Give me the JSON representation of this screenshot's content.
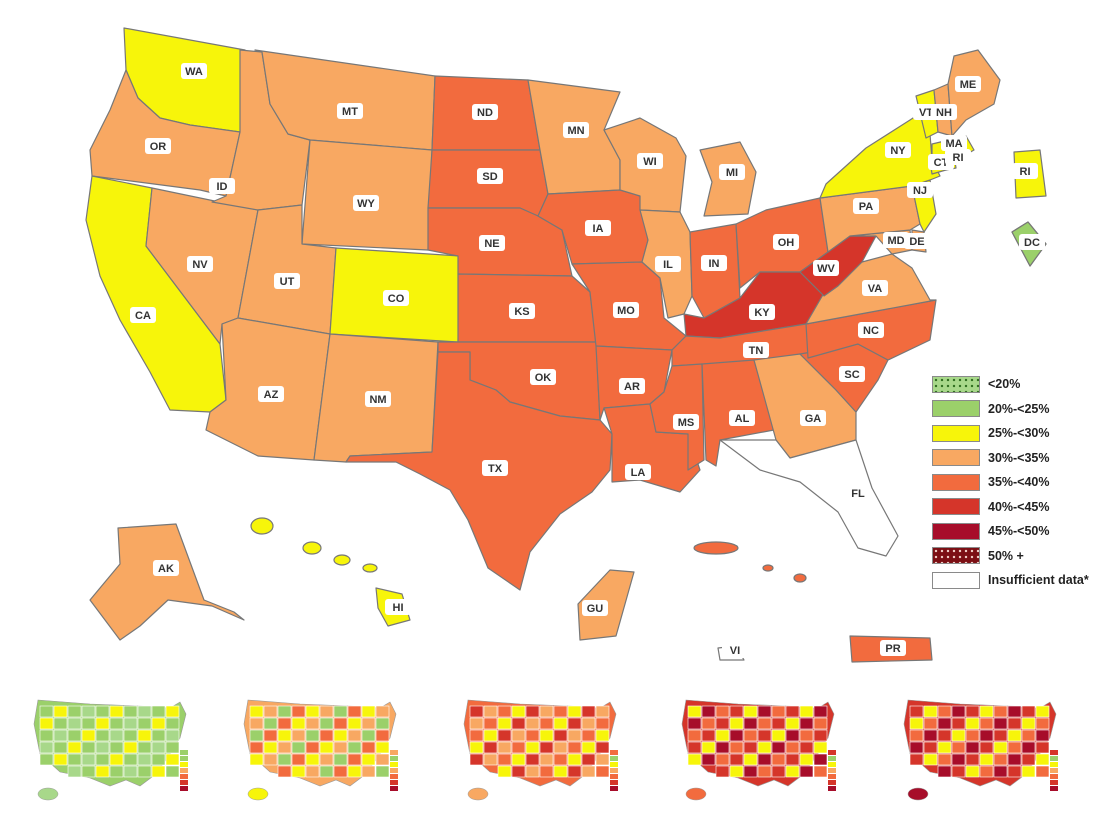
{
  "legend": [
    {
      "label": "<20%",
      "color": "#a8d88a",
      "pattern": "dots"
    },
    {
      "label": "20%-<25%",
      "color": "#9bd06a"
    },
    {
      "label": "25%-<30%",
      "color": "#f7f50a"
    },
    {
      "label": "30%-<35%",
      "color": "#f8a862"
    },
    {
      "label": "35%-<40%",
      "color": "#f26b3e"
    },
    {
      "label": "40%-<45%",
      "color": "#d5352a"
    },
    {
      "label": "45%-<50%",
      "color": "#a70d2a"
    },
    {
      "label": "50% +",
      "color": "#7c0f14",
      "pattern": "dots"
    },
    {
      "label": "Insufficient data*",
      "color": "#ffffff"
    }
  ],
  "states": [
    {
      "abbr": "WA",
      "bin": "25%-<30%"
    },
    {
      "abbr": "OR",
      "bin": "30%-<35%"
    },
    {
      "abbr": "CA",
      "bin": "25%-<30%"
    },
    {
      "abbr": "NV",
      "bin": "30%-<35%"
    },
    {
      "abbr": "ID",
      "bin": "30%-<35%"
    },
    {
      "abbr": "MT",
      "bin": "30%-<35%"
    },
    {
      "abbr": "WY",
      "bin": "30%-<35%"
    },
    {
      "abbr": "UT",
      "bin": "30%-<35%"
    },
    {
      "abbr": "CO",
      "bin": "25%-<30%"
    },
    {
      "abbr": "AZ",
      "bin": "30%-<35%"
    },
    {
      "abbr": "NM",
      "bin": "30%-<35%"
    },
    {
      "abbr": "ND",
      "bin": "35%-<40%"
    },
    {
      "abbr": "SD",
      "bin": "35%-<40%"
    },
    {
      "abbr": "NE",
      "bin": "35%-<40%"
    },
    {
      "abbr": "KS",
      "bin": "35%-<40%"
    },
    {
      "abbr": "OK",
      "bin": "35%-<40%"
    },
    {
      "abbr": "TX",
      "bin": "35%-<40%"
    },
    {
      "abbr": "MN",
      "bin": "30%-<35%"
    },
    {
      "abbr": "IA",
      "bin": "35%-<40%"
    },
    {
      "abbr": "MO",
      "bin": "35%-<40%"
    },
    {
      "abbr": "AR",
      "bin": "35%-<40%"
    },
    {
      "abbr": "LA",
      "bin": "35%-<40%"
    },
    {
      "abbr": "WI",
      "bin": "30%-<35%"
    },
    {
      "abbr": "IL",
      "bin": "30%-<35%"
    },
    {
      "abbr": "MI",
      "bin": "30%-<35%"
    },
    {
      "abbr": "IN",
      "bin": "35%-<40%"
    },
    {
      "abbr": "OH",
      "bin": "35%-<40%"
    },
    {
      "abbr": "KY",
      "bin": "40%-<45%"
    },
    {
      "abbr": "TN",
      "bin": "35%-<40%"
    },
    {
      "abbr": "MS",
      "bin": "35%-<40%"
    },
    {
      "abbr": "AL",
      "bin": "35%-<40%"
    },
    {
      "abbr": "GA",
      "bin": "30%-<35%"
    },
    {
      "abbr": "FL",
      "bin": "Insufficient data*"
    },
    {
      "abbr": "SC",
      "bin": "35%-<40%"
    },
    {
      "abbr": "NC",
      "bin": "35%-<40%"
    },
    {
      "abbr": "VA",
      "bin": "30%-<35%"
    },
    {
      "abbr": "WV",
      "bin": "40%-<45%"
    },
    {
      "abbr": "MD",
      "bin": "30%-<35%"
    },
    {
      "abbr": "DE",
      "bin": "30%-<35%"
    },
    {
      "abbr": "PA",
      "bin": "30%-<35%"
    },
    {
      "abbr": "NJ",
      "bin": "25%-<30%"
    },
    {
      "abbr": "NY",
      "bin": "25%-<30%"
    },
    {
      "abbr": "CT",
      "bin": "25%-<30%"
    },
    {
      "abbr": "RI",
      "bin": "25%-<30%"
    },
    {
      "abbr": "MA",
      "bin": "25%-<30%"
    },
    {
      "abbr": "VT",
      "bin": "25%-<30%"
    },
    {
      "abbr": "NH",
      "bin": "30%-<35%"
    },
    {
      "abbr": "ME",
      "bin": "30%-<35%"
    },
    {
      "abbr": "DC",
      "bin": "20%-<25%"
    },
    {
      "abbr": "AK",
      "bin": "30%-<35%"
    },
    {
      "abbr": "HI",
      "bin": "25%-<30%"
    },
    {
      "abbr": "GU",
      "bin": "30%-<35%"
    },
    {
      "abbr": "PR",
      "bin": "35%-<40%"
    },
    {
      "abbr": "VI",
      "bin": "Insufficient data*"
    }
  ],
  "inset_labels": {
    "RI": "RI",
    "DC": "DC"
  }
}
